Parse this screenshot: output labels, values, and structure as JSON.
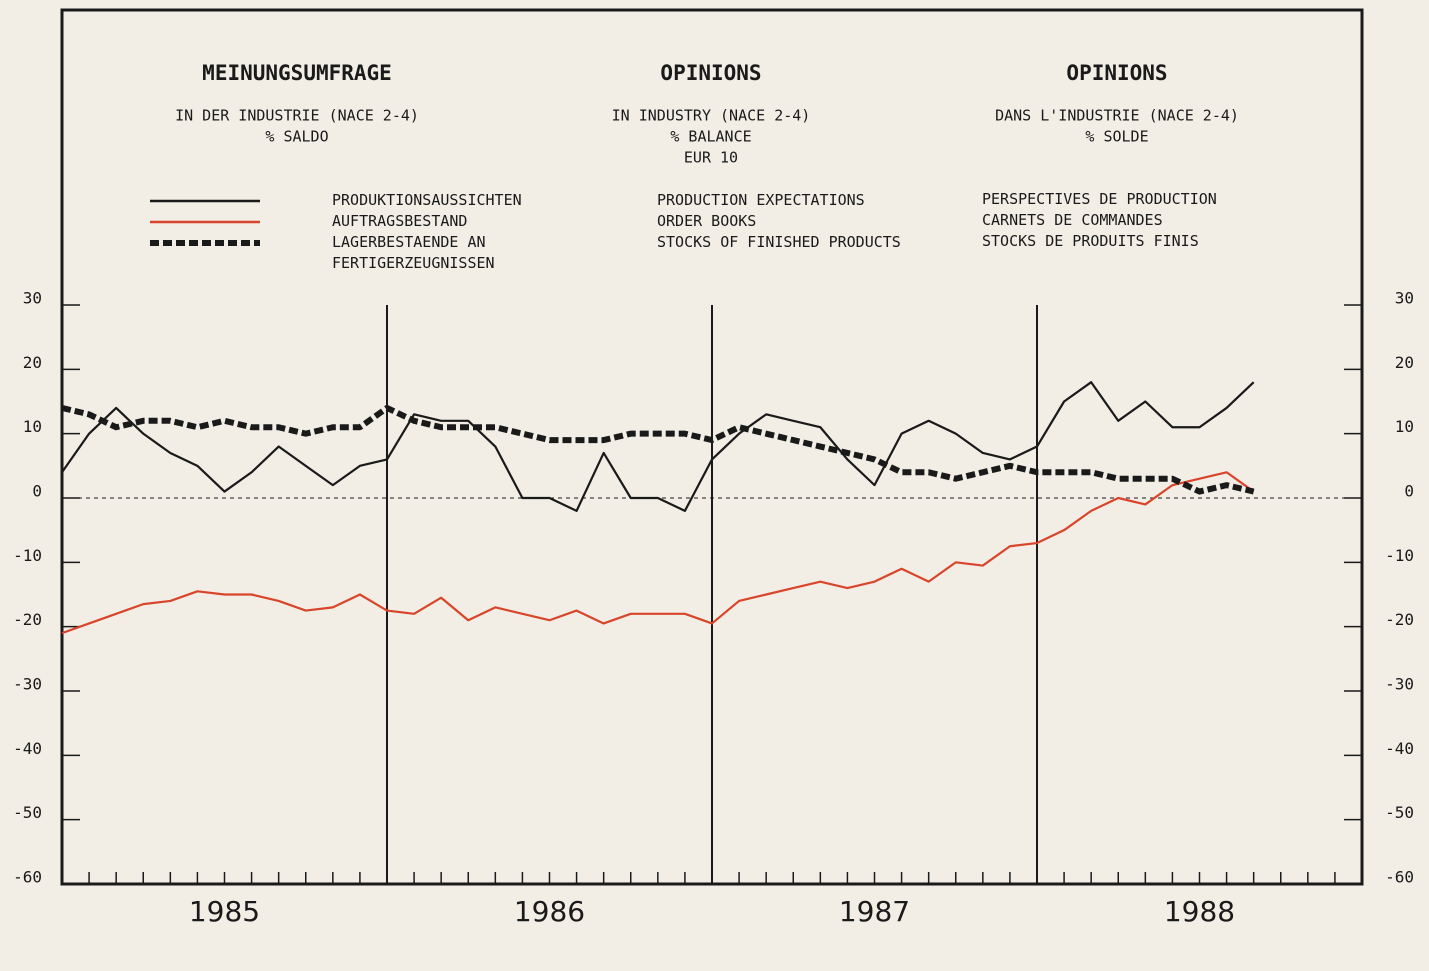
{
  "chart_data": {
    "type": "line",
    "headers": [
      {
        "title": "MEINUNGSUMFRAGE",
        "lines": [
          "IN DER INDUSTRIE (NACE 2-4)",
          "% SALDO"
        ]
      },
      {
        "title": "OPINIONS",
        "lines": [
          "IN INDUSTRY (NACE 2-4)",
          "% BALANCE",
          "EUR 10"
        ]
      },
      {
        "title": "OPINIONS",
        "lines": [
          "DANS L'INDUSTRIE (NACE 2-4)",
          "% SOLDE"
        ]
      }
    ],
    "legend_en": [
      "PRODUCTION EXPECTATIONS",
      "ORDER BOOKS",
      "STOCKS OF FINISHED PRODUCTS"
    ],
    "legend_fr": [
      "PERSPECTIVES DE PRODUCTION",
      "CARNETS DE COMMANDES",
      "STOCKS DE PRODUITS FINIS"
    ],
    "year_labels": [
      "1985",
      "1986",
      "1987",
      "1988"
    ],
    "categories": [
      null,
      null,
      null,
      null,
      null,
      null,
      null,
      null,
      null,
      null,
      null,
      null,
      null,
      null,
      null,
      null,
      null,
      null,
      null,
      null,
      null,
      null,
      null,
      null,
      null,
      null,
      null,
      null,
      null,
      null,
      null,
      null,
      null,
      null,
      null,
      null,
      null,
      null,
      null,
      null,
      null,
      null,
      null,
      null,
      null,
      null,
      null,
      null
    ],
    "series": [
      {
        "name": "PRODUKTIONSAUSSICHTEN",
        "color": "#1a1a1a",
        "dashed": false,
        "values": [
          4,
          10,
          14,
          10,
          7,
          5,
          1,
          4,
          8,
          5,
          2,
          5,
          6,
          13,
          12,
          12,
          8,
          0,
          0,
          -2,
          7,
          0,
          0,
          -2,
          6,
          10,
          13,
          12,
          11,
          6,
          2,
          10,
          12,
          10,
          7,
          6,
          8,
          15,
          18,
          12,
          15,
          11,
          11,
          14,
          18,
          null,
          null,
          null
        ]
      },
      {
        "name": "AUFTRAGSBESTAND",
        "color": "#d9452b",
        "dashed": false,
        "values": [
          -21,
          -19.5,
          -18,
          -16.5,
          -16,
          -14.5,
          -15,
          -15,
          -16,
          -17.5,
          -17,
          -15,
          -17.5,
          -18,
          -15.5,
          -19,
          -17,
          -18,
          -19,
          -17.5,
          -19.5,
          -18,
          -18,
          -18,
          -19.5,
          -16,
          -15,
          -14,
          -13,
          -14,
          -13,
          -11,
          -13,
          -10,
          -10.5,
          -7.5,
          -7,
          -5,
          -2,
          0,
          -1,
          2,
          3,
          4,
          1,
          null,
          null,
          null
        ]
      },
      {
        "name": "LAGERBESTAENDE AN\nFERTIGERZEUGNISSEN",
        "color": "#1a1a1a",
        "dashed": true,
        "values": [
          14,
          13,
          11,
          12,
          12,
          11,
          12,
          11,
          11,
          10,
          11,
          11,
          14,
          12,
          11,
          11,
          11,
          10,
          9,
          9,
          9,
          10,
          10,
          10,
          9,
          11,
          10,
          9,
          8,
          7,
          6,
          4,
          4,
          3,
          4,
          5,
          4,
          4,
          4,
          3,
          3,
          3,
          1,
          2,
          1,
          null,
          null,
          null
        ]
      }
    ],
    "ylim": [
      -60,
      30
    ],
    "yticks": [
      -60,
      -50,
      -40,
      -30,
      -20,
      -10,
      0,
      10,
      20,
      30
    ]
  }
}
